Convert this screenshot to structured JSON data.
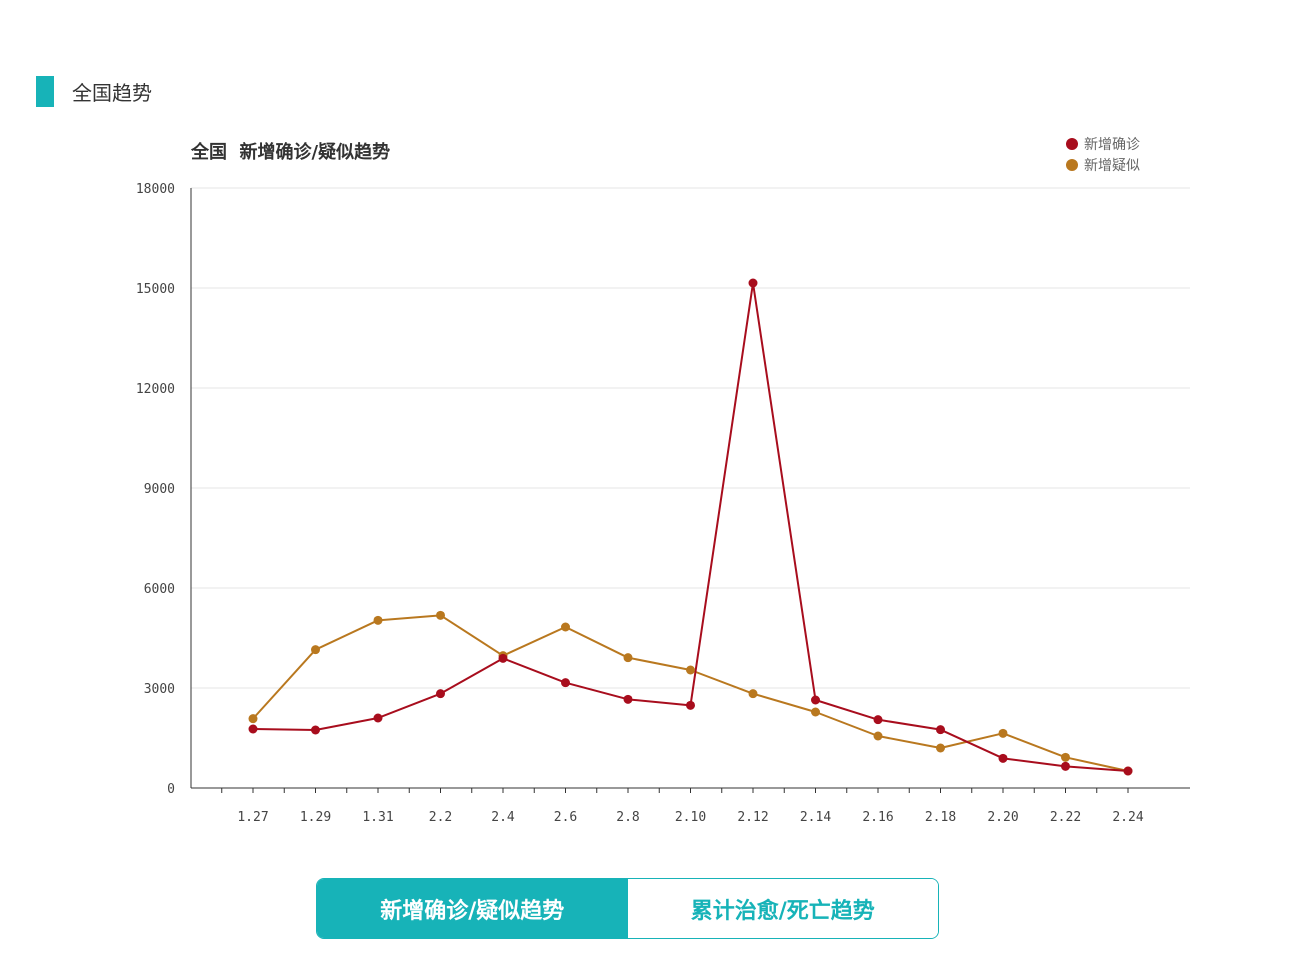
{
  "section": {
    "title": "全国趋势"
  },
  "tabs": [
    {
      "label": "新增确诊/疑似趋势",
      "active": true
    },
    {
      "label": "累计治愈/死亡趋势",
      "active": false
    }
  ],
  "colors": {
    "accent": "#17b3b8",
    "confirmed": "#a80d1d",
    "suspected": "#b9781f",
    "grid": "#e6e6e6"
  },
  "chart_data": {
    "type": "line",
    "title": "全国  新增确诊/疑似趋势",
    "xlabel": "",
    "ylabel": "",
    "ylim": [
      0,
      18000
    ],
    "yticks": [
      0,
      3000,
      6000,
      9000,
      12000,
      15000,
      18000
    ],
    "grid": true,
    "legend_position": "top-right",
    "categories": [
      "1.27",
      "1.29",
      "1.31",
      "2.2",
      "2.4",
      "2.6",
      "2.8",
      "2.10",
      "2.12",
      "2.14",
      "2.16",
      "2.18",
      "2.20",
      "2.22",
      "2.24"
    ],
    "series": [
      {
        "name": "新增确诊",
        "color": "#a80d1d",
        "values": [
          1770,
          1740,
          2100,
          2830,
          3890,
          3160,
          2660,
          2480,
          15150,
          2640,
          2050,
          1750,
          890,
          650,
          510
        ]
      },
      {
        "name": "新增疑似",
        "color": "#b9781f",
        "values": [
          2080,
          4150,
          5030,
          5180,
          3970,
          4830,
          3910,
          3540,
          2830,
          2280,
          1560,
          1200,
          1640,
          920,
          510
        ]
      }
    ]
  }
}
